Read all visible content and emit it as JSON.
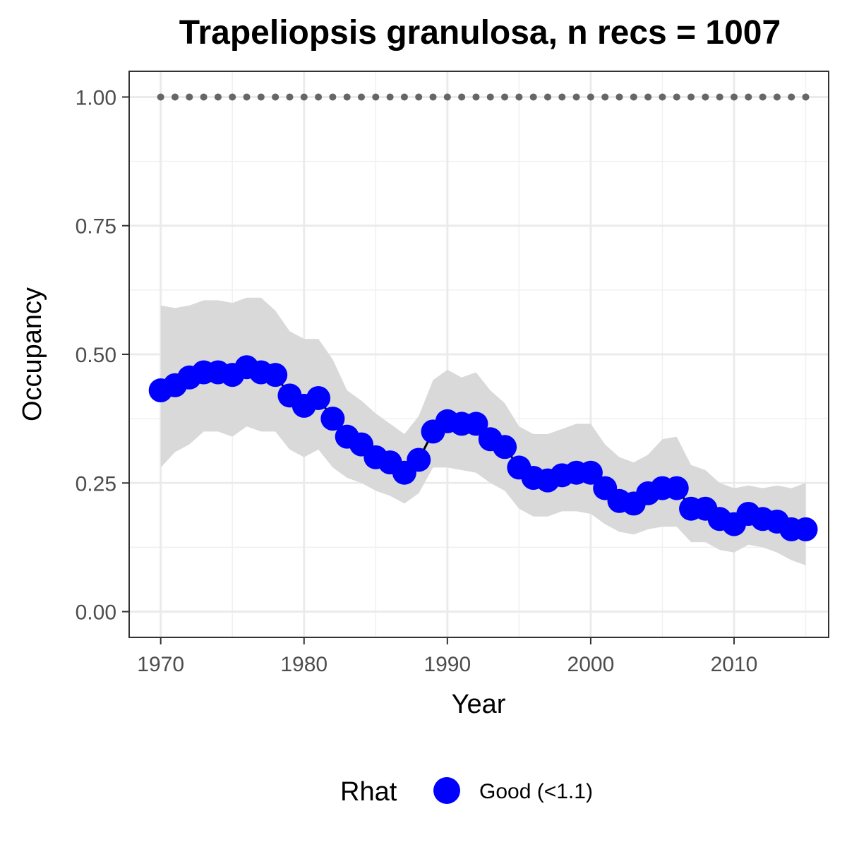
{
  "chart_data": {
    "type": "line",
    "title": "Trapeliopsis granulosa, n recs = 1007",
    "xlabel": "Year",
    "ylabel": "Occupancy",
    "xlim": [
      1967.8,
      2016.6
    ],
    "ylim": [
      -0.05,
      1.05
    ],
    "x_ticks": [
      1970,
      1980,
      1990,
      2000,
      2010
    ],
    "x_tick_labels": [
      "1970",
      "1980",
      "1990",
      "2000",
      "2010"
    ],
    "y_ticks": [
      0,
      0.25,
      0.5,
      0.75,
      1.0
    ],
    "y_tick_labels": [
      "0.00",
      "0.25",
      "0.50",
      "0.75",
      "1.00"
    ],
    "grid": true,
    "legend_position": "bottom",
    "legend": {
      "title": "Rhat",
      "entries": [
        {
          "label": "Good (<1.1)",
          "color": "#0000ff"
        }
      ]
    },
    "colors": {
      "points": "#0000ff",
      "line": "#000000",
      "ribbon": "#d9d9d9",
      "reference": "#666666"
    },
    "reference_line": {
      "y": 1.0,
      "style": "dotted"
    },
    "x": [
      1970,
      1971,
      1972,
      1973,
      1974,
      1975,
      1976,
      1977,
      1978,
      1979,
      1980,
      1981,
      1982,
      1983,
      1984,
      1985,
      1986,
      1987,
      1988,
      1989,
      1990,
      1991,
      1992,
      1993,
      1994,
      1995,
      1996,
      1997,
      1998,
      1999,
      2000,
      2001,
      2002,
      2003,
      2004,
      2005,
      2006,
      2007,
      2008,
      2009,
      2010,
      2011,
      2012,
      2013,
      2014,
      2015
    ],
    "series": [
      {
        "name": "Good (<1.1)",
        "values": [
          0.43,
          0.44,
          0.455,
          0.465,
          0.465,
          0.46,
          0.475,
          0.465,
          0.46,
          0.42,
          0.4,
          0.415,
          0.375,
          0.34,
          0.325,
          0.3,
          0.29,
          0.27,
          0.295,
          0.35,
          0.37,
          0.365,
          0.365,
          0.335,
          0.32,
          0.28,
          0.26,
          0.255,
          0.265,
          0.27,
          0.27,
          0.24,
          0.215,
          0.21,
          0.23,
          0.24,
          0.24,
          0.2,
          0.2,
          0.18,
          0.17,
          0.19,
          0.18,
          0.175,
          0.16,
          0.16
        ],
        "lower": [
          0.28,
          0.31,
          0.325,
          0.35,
          0.35,
          0.34,
          0.36,
          0.35,
          0.35,
          0.315,
          0.3,
          0.315,
          0.28,
          0.26,
          0.25,
          0.235,
          0.225,
          0.21,
          0.23,
          0.28,
          0.28,
          0.275,
          0.27,
          0.25,
          0.235,
          0.2,
          0.185,
          0.185,
          0.195,
          0.195,
          0.19,
          0.17,
          0.155,
          0.15,
          0.16,
          0.165,
          0.165,
          0.135,
          0.135,
          0.12,
          0.115,
          0.13,
          0.125,
          0.115,
          0.1,
          0.09
        ],
        "upper": [
          0.595,
          0.59,
          0.595,
          0.605,
          0.605,
          0.6,
          0.61,
          0.61,
          0.585,
          0.545,
          0.53,
          0.53,
          0.49,
          0.43,
          0.41,
          0.385,
          0.365,
          0.345,
          0.38,
          0.45,
          0.47,
          0.455,
          0.465,
          0.43,
          0.405,
          0.36,
          0.345,
          0.345,
          0.355,
          0.365,
          0.365,
          0.325,
          0.3,
          0.29,
          0.305,
          0.335,
          0.34,
          0.285,
          0.275,
          0.25,
          0.24,
          0.245,
          0.24,
          0.245,
          0.24,
          0.25
        ]
      }
    ]
  }
}
